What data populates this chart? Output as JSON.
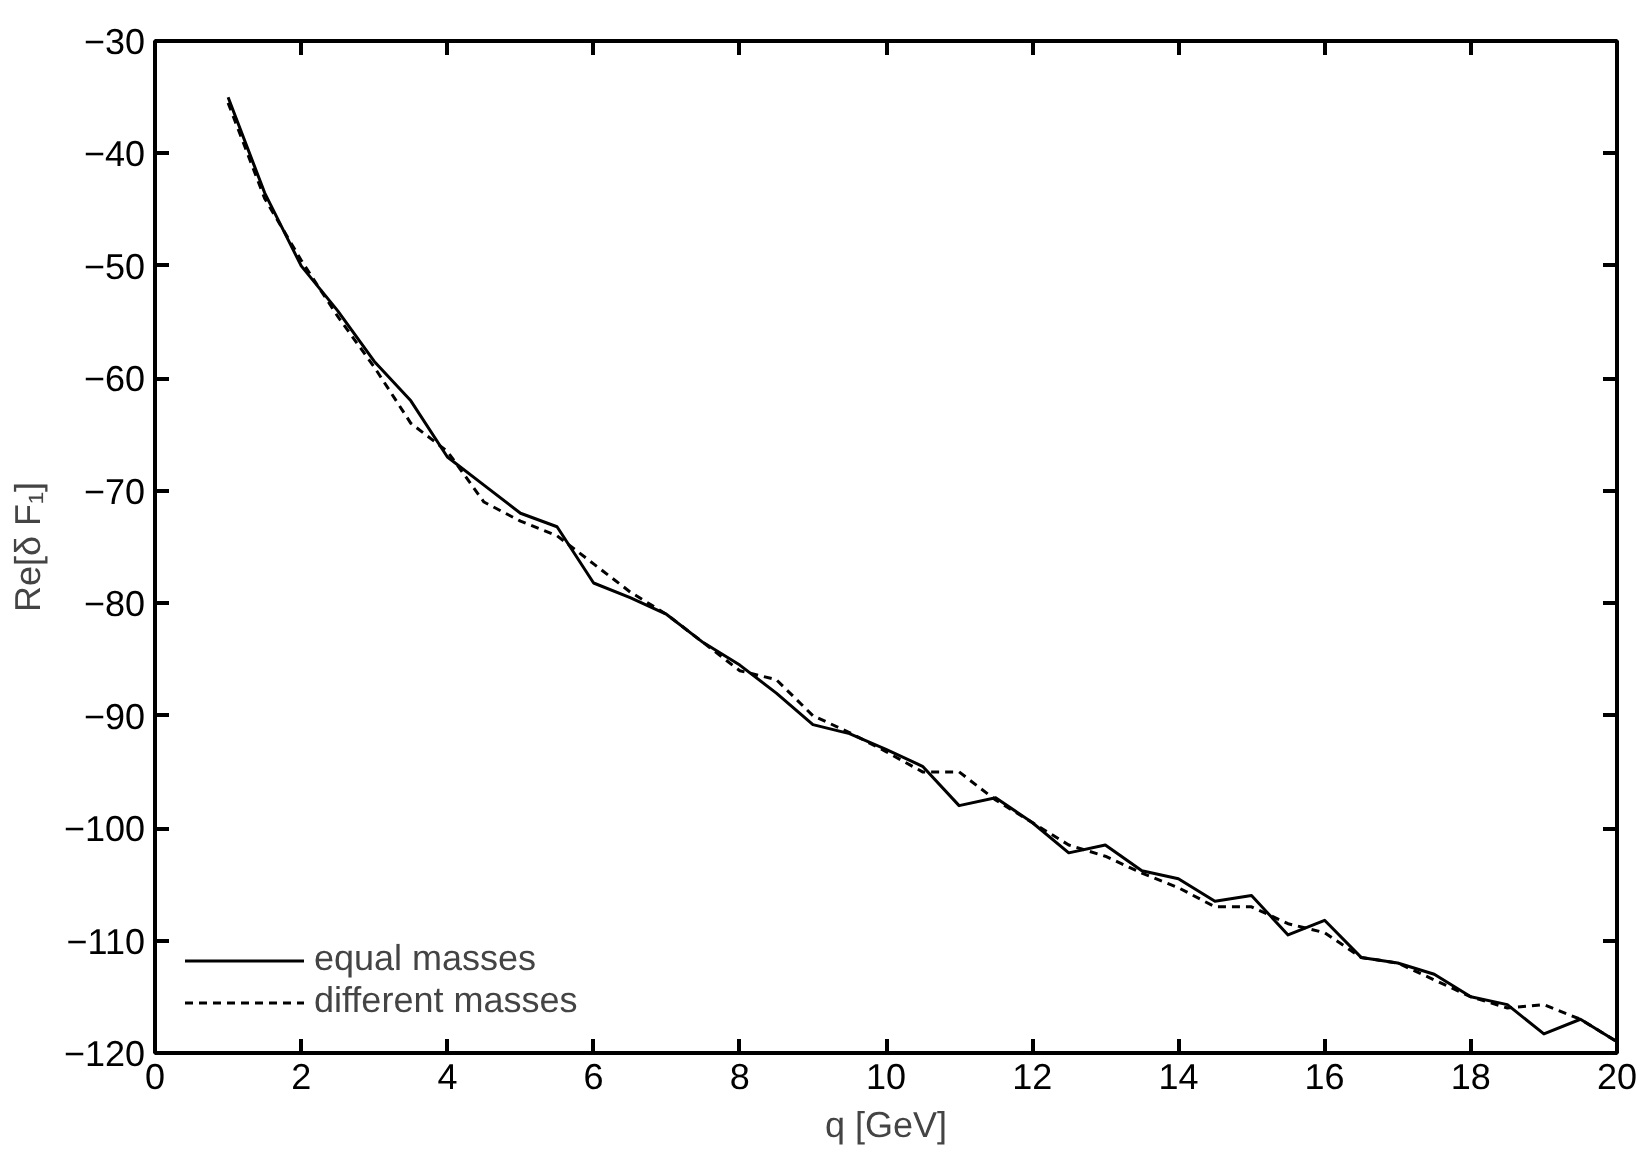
{
  "chart_data": {
    "type": "line",
    "xlabel": "q [GeV]",
    "ylabel": "Re[δ F₁]",
    "x": [
      1,
      1.5,
      2,
      2.5,
      3,
      3.5,
      4,
      4.5,
      5,
      5.5,
      6,
      6.5,
      7,
      7.5,
      8,
      8.5,
      9,
      9.5,
      10,
      10.5,
      11,
      11.5,
      12,
      12.5,
      13,
      13.5,
      14,
      14.5,
      15,
      15.5,
      16,
      16.5,
      17,
      17.5,
      18,
      18.5,
      19,
      19.5,
      20
    ],
    "series": [
      {
        "name": "equal masses",
        "color": "#000000",
        "line_style": "solid",
        "values": [
          -35,
          -43.5,
          -50,
          -54,
          -58.5,
          -62,
          -67,
          -69.5,
          -72,
          -73.2,
          -78.2,
          -79.5,
          -81,
          -83.5,
          -85.5,
          -88,
          -90.8,
          -91.6,
          -93,
          -94.5,
          -98,
          -97.3,
          -99.5,
          -102.2,
          -101.5,
          -103.8,
          -104.5,
          -106.5,
          -106,
          -109.5,
          -108.2,
          -111.5,
          -112,
          -113,
          -115,
          -115.7,
          -118.3,
          -117,
          -119
        ]
      },
      {
        "name": "different masses",
        "color": "#000000",
        "line_style": "dashed",
        "values": [
          -35.5,
          -44,
          -49.5,
          -54.5,
          -59,
          -64,
          -66.5,
          -71,
          -72.7,
          -74,
          -76.5,
          -79,
          -81,
          -83.5,
          -86,
          -86.8,
          -90,
          -91.5,
          -93.2,
          -95,
          -95,
          -97.5,
          -99.5,
          -101.5,
          -102.5,
          -104,
          -105.3,
          -107,
          -107,
          -108.5,
          -109.3,
          -111.5,
          -112,
          -113.5,
          -115,
          -116,
          -115.7,
          -117,
          -119
        ]
      }
    ],
    "xlim": [
      0,
      20
    ],
    "ylim": [
      -120,
      -30
    ],
    "xticks": [
      0,
      2,
      4,
      6,
      8,
      10,
      12,
      14,
      16,
      18,
      20
    ],
    "yticks": [
      -120,
      -110,
      -100,
      -90,
      -80,
      -70,
      -60,
      -50,
      -40,
      -30
    ],
    "grid": false,
    "legend": "bottom left",
    "marker": "none"
  }
}
